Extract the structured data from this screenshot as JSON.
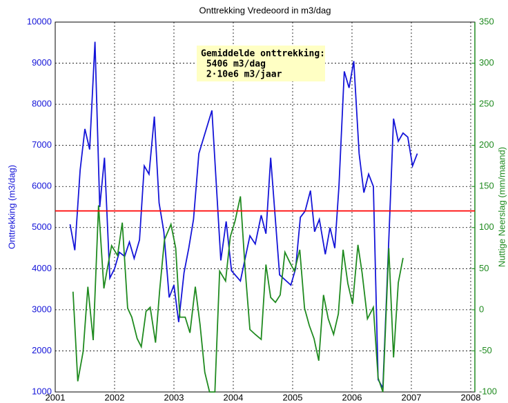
{
  "chart_data": {
    "type": "line",
    "title": "Onttrekking Vredeoord in m3/dag",
    "ylabel": "Onttrekking (m3/dag)",
    "y2label": "Nuttige Neerslag (mm/maand)",
    "xlim": [
      2001,
      2008.07
    ],
    "xticks": [
      2001,
      2002,
      2003,
      2004,
      2005,
      2006,
      2007,
      2008
    ],
    "ylim": [
      1000,
      10000
    ],
    "yticks": [
      1000,
      2000,
      3000,
      4000,
      5000,
      6000,
      7000,
      8000,
      9000,
      10000
    ],
    "y2lim": [
      -100,
      350
    ],
    "y2ticks": [
      -100,
      -50,
      0,
      50,
      100,
      150,
      200,
      250,
      300,
      350
    ],
    "grid": true,
    "annotation": [
      "Gemiddelde onttrekking:",
      " 5406 m3/dag",
      " 2·10e6 m3/jaar"
    ],
    "reference_line": {
      "value": 5406,
      "color": "#ff0000"
    },
    "series": [
      {
        "color": "#1414d8",
        "x": [
          2001.25,
          2001.33,
          2001.42,
          2001.5,
          2001.58,
          2001.67,
          2001.75,
          2001.83,
          2001.92,
          2002.0,
          2002.08,
          2002.17,
          2002.25,
          2002.33,
          2002.42,
          2002.5,
          2002.58,
          2002.67,
          2002.75,
          2002.83,
          2002.92,
          2003.0,
          2003.08,
          2003.17,
          2003.25,
          2003.33,
          2003.42,
          2003.64,
          2003.79,
          2003.88,
          2003.97,
          2004.12,
          2004.28,
          2004.37,
          2004.47,
          2004.55,
          2004.63,
          2004.78,
          2004.97,
          2005.05,
          2005.13,
          2005.21,
          2005.3,
          2005.37,
          2005.45,
          2005.55,
          2005.63,
          2005.71,
          2005.78,
          2005.87,
          2005.95,
          2006.03,
          2006.12,
          2006.2,
          2006.28,
          2006.36,
          2006.44,
          2006.52,
          2006.62,
          2006.7,
          2006.78,
          2006.86,
          2006.94,
          2007.02,
          2007.1
        ],
        "values": [
          5080,
          4450,
          6400,
          7400,
          6900,
          9520,
          5500,
          6700,
          3770,
          4000,
          4400,
          4300,
          4650,
          4250,
          4700,
          6500,
          6300,
          7700,
          5600,
          4900,
          3300,
          3600,
          2700,
          3900,
          4500,
          5200,
          6800,
          7850,
          4200,
          5150,
          3950,
          3700,
          4800,
          4600,
          5300,
          4850,
          6700,
          3850,
          3600,
          4000,
          5250,
          5400,
          5900,
          4900,
          5200,
          4350,
          5000,
          4500,
          6000,
          8800,
          8400,
          9050,
          6800,
          5850,
          6300,
          6000,
          1300,
          1100,
          4700,
          7650,
          7100,
          7300,
          7200,
          6500,
          6800
        ]
      },
      {
        "color": "#1f8a1f",
        "axis": "y2",
        "x": [
          2001.3,
          2001.38,
          2001.47,
          2001.55,
          2001.64,
          2001.73,
          2001.82,
          2001.88,
          2001.95,
          2002.05,
          2002.13,
          2002.22,
          2002.29,
          2002.38,
          2002.45,
          2002.53,
          2002.6,
          2002.69,
          2002.76,
          2002.84,
          2002.95,
          2003.03,
          2003.1,
          2003.19,
          2003.27,
          2003.36,
          2003.44,
          2003.52,
          2003.6,
          2003.69,
          2003.77,
          2003.87,
          2003.95,
          2004.03,
          2004.12,
          2004.2,
          2004.28,
          2004.37,
          2004.47,
          2004.55,
          2004.63,
          2004.71,
          2004.79,
          2004.87,
          2004.95,
          2005.03,
          2005.12,
          2005.2,
          2005.28,
          2005.36,
          2005.44,
          2005.52,
          2005.6,
          2005.69,
          2005.77,
          2005.85,
          2005.93,
          2006.01,
          2006.1,
          2006.17,
          2006.26,
          2006.36,
          2006.44,
          2006.52,
          2006.62,
          2006.7,
          2006.78,
          2006.86
        ],
        "values": [
          22,
          -87,
          -51,
          28,
          -37,
          127,
          26,
          51,
          78,
          66,
          106,
          2,
          -9,
          -35,
          -45,
          -2,
          3,
          -40,
          24,
          85,
          104,
          75,
          -9,
          -9,
          -28,
          28,
          -18,
          -76,
          -100,
          -100,
          47,
          35,
          89,
          108,
          138,
          49,
          -24,
          -30,
          -36,
          55,
          15,
          9,
          18,
          70,
          58,
          47,
          73,
          2,
          -19,
          -35,
          -62,
          18,
          -11,
          -30,
          -5,
          73,
          32,
          7,
          79,
          45,
          -11,
          3,
          -83,
          -100,
          75,
          -58,
          33,
          63
        ]
      }
    ]
  }
}
